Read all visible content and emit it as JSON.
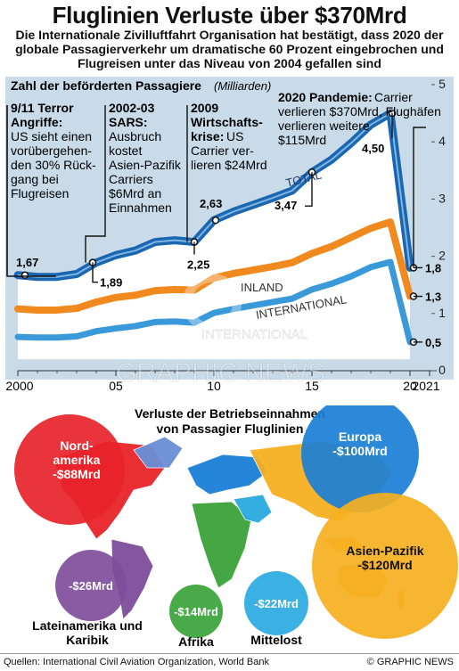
{
  "title": "Fluglinien Verluste über $370Mrd",
  "subtitle": "Die Internationale Zivilluftfahrt Organisation hat bestätigt, dass 2020 der globale Passagierverkehr um dramatische 60 Prozent eingebrochen und Flugreisen unter das Niveau von 2004 gefallen sind",
  "chart_data": [
    {
      "type": "line",
      "title": "Zahl der beförderten Passagiere",
      "unit": "(Milliarden)",
      "x": [
        2000,
        2001,
        2002,
        2003,
        2004,
        2005,
        2006,
        2007,
        2008,
        2009,
        2010,
        2011,
        2012,
        2013,
        2014,
        2015,
        2016,
        2017,
        2018,
        2019,
        2020
      ],
      "series": [
        {
          "name": "TOTAL",
          "color": "#1a66b0",
          "values": [
            1.67,
            1.64,
            1.64,
            1.69,
            1.89,
            2.02,
            2.1,
            2.25,
            2.28,
            2.25,
            2.63,
            2.78,
            2.9,
            3.02,
            3.15,
            3.47,
            3.69,
            3.98,
            4.3,
            4.5,
            1.8
          ]
        },
        {
          "name": "INLAND",
          "color": "#f08a1e",
          "values": [
            1.08,
            1.06,
            1.06,
            1.09,
            1.2,
            1.28,
            1.32,
            1.4,
            1.42,
            1.41,
            1.62,
            1.7,
            1.76,
            1.82,
            1.89,
            2.05,
            2.17,
            2.33,
            2.49,
            2.6,
            1.3
          ]
        },
        {
          "name": "INTERNATIONAL",
          "color": "#3a9ad9",
          "values": [
            0.59,
            0.58,
            0.58,
            0.6,
            0.69,
            0.74,
            0.78,
            0.85,
            0.86,
            0.84,
            1.01,
            1.08,
            1.14,
            1.2,
            1.26,
            1.42,
            1.52,
            1.65,
            1.81,
            1.9,
            0.5
          ]
        }
      ],
      "data_labels": [
        {
          "x": 2000,
          "text": "1,67"
        },
        {
          "x": 2004,
          "text": "1,89"
        },
        {
          "x": 2009,
          "text": "2,25"
        },
        {
          "x": 2010,
          "text": "2,63"
        },
        {
          "x": 2015,
          "text": "3,47"
        },
        {
          "x": 2019,
          "text": "4,50"
        },
        {
          "x": 2020,
          "text": "1,8"
        },
        {
          "x": 2020,
          "text": "1,3"
        },
        {
          "x": 2020,
          "text": "0,5"
        }
      ],
      "x_ticks": [
        "2000",
        "05",
        "10",
        "15",
        "20",
        "2021"
      ],
      "y_ticks": [
        "0",
        "1",
        "2",
        "3",
        "4",
        "5"
      ],
      "ylim": [
        0,
        5
      ],
      "xlim": [
        2000,
        2021
      ],
      "annotations": [
        {
          "heading": [
            "9/11 Terror",
            "Angriffe:"
          ],
          "body": [
            "US sieht einen",
            "vorübergehen-",
            "den 30% Rück-",
            "gang bei",
            "Flugreisen"
          ]
        },
        {
          "heading": [
            "2002-03",
            "SARS:"
          ],
          "body": [
            "Ausbruch",
            "kostet",
            "Asien-Pazifik",
            "Carriers",
            "$6Mrd an",
            "Einnahmen"
          ]
        },
        {
          "heading": [
            "2009",
            "Wirtschafts-"
          ],
          "body_first": "krise:",
          "body": [
            " US",
            "Carrier ver-",
            "lieren $24Mrd"
          ]
        },
        {
          "heading": [
            "2020 Pandemie:"
          ],
          "body": [
            " Carrier",
            "verlieren $370Mrd, Flughäfen",
            "verlieren weitere",
            "$115Mrd"
          ]
        }
      ]
    },
    {
      "type": "bubble",
      "title": "Verluste der Betriebseinnahmen von Passagier Fluglinien",
      "title_lines": [
        "Verluste der Betriebseinnahmen",
        "von Passagier Fluglinien"
      ],
      "regions": [
        {
          "name": "Nord-amerika",
          "name_lines": [
            "Nord-",
            "amerika"
          ],
          "value": -88,
          "label": "-$88Mrd",
          "color": "#e8232a"
        },
        {
          "name": "Europa",
          "name_lines": [
            "Europa"
          ],
          "value": -100,
          "label": "-$100Mrd",
          "color": "#1a7fd6"
        },
        {
          "name": "Asien-Pazifik",
          "name_lines": [
            "Asien-Pazifik"
          ],
          "value": -120,
          "label": "-$120Mrd",
          "color": "#f5b021"
        },
        {
          "name": "Lateinamerika und Karibik",
          "name_lines": [
            "Lateinamerika und",
            "Karibik"
          ],
          "value": -26,
          "label": "-$26Mrd",
          "color": "#7e4d9a"
        },
        {
          "name": "Afrika",
          "name_lines": [
            "Afrika"
          ],
          "value": -14,
          "label": "-$14Mrd",
          "color": "#3aa33a"
        },
        {
          "name": "Mittelost",
          "name_lines": [
            "Mittelost"
          ],
          "value": -22,
          "label": "-$22Mrd",
          "color": "#2aa9e0"
        }
      ]
    }
  ],
  "watermark": {
    "lines": [
      "INTERNATIONAL",
      "GRAPHIC NEWS"
    ]
  },
  "footer": {
    "sources": "Quellen: International Civil Aviation Organization, World Bank",
    "copyright": "© GRAPHIC NEWS"
  }
}
